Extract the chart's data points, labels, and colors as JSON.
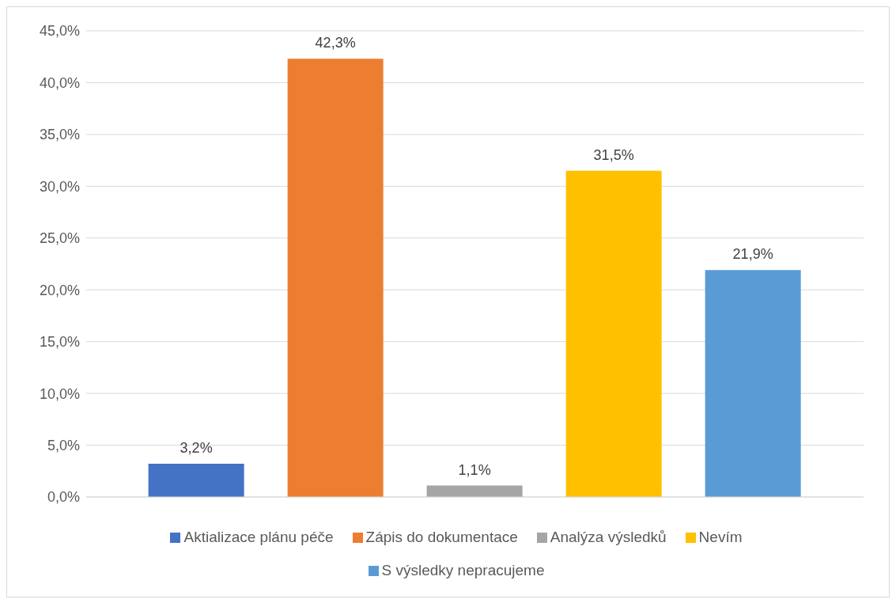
{
  "chart_data": {
    "type": "bar",
    "categories": [
      null
    ],
    "series": [
      {
        "name": "Aktializace plánu péče",
        "color": "#4472c4",
        "values": [
          3.2
        ],
        "value_labels": [
          "3,2%"
        ]
      },
      {
        "name": "Zápis do dokumentace",
        "color": "#ed7d31",
        "values": [
          42.3
        ],
        "value_labels": [
          "42,3%"
        ]
      },
      {
        "name": "Analýza výsledků",
        "color": "#a5a5a5",
        "values": [
          1.1
        ],
        "value_labels": [
          "1,1%"
        ]
      },
      {
        "name": "Nevím",
        "color": "#ffc000",
        "values": [
          31.5
        ],
        "value_labels": [
          "31,5%"
        ]
      },
      {
        "name": "S výsledky nepracujeme",
        "color": "#5b9bd5",
        "values": [
          21.9
        ],
        "value_labels": [
          "21,9%"
        ]
      }
    ],
    "ylim": [
      0,
      45
    ],
    "yticks": [
      {
        "value": 0,
        "label": "0,0%"
      },
      {
        "value": 5,
        "label": "5,0%"
      },
      {
        "value": 10,
        "label": "10,0%"
      },
      {
        "value": 15,
        "label": "15,0%"
      },
      {
        "value": 20,
        "label": "20,0%"
      },
      {
        "value": 25,
        "label": "25,0%"
      },
      {
        "value": 30,
        "label": "30,0%"
      },
      {
        "value": 35,
        "label": "35,0%"
      },
      {
        "value": 40,
        "label": "40,0%"
      },
      {
        "value": 45,
        "label": "45,0%"
      }
    ],
    "grid": "y",
    "legend": "bottom",
    "tick_labels": "y"
  }
}
